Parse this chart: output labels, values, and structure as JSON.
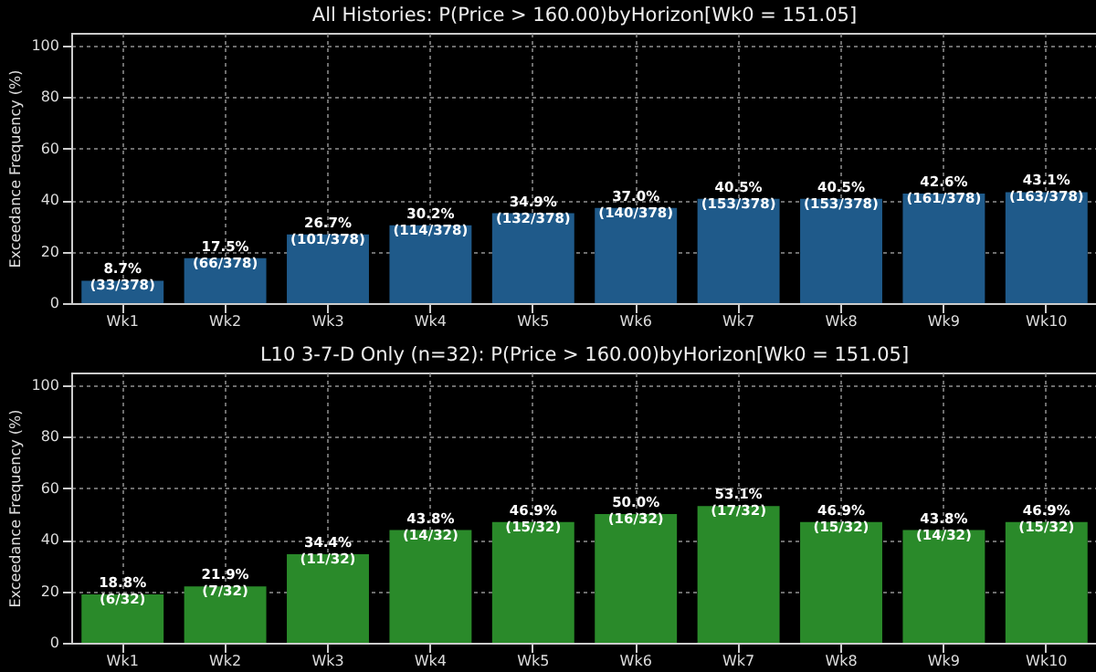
{
  "chart_data": [
    {
      "type": "bar",
      "title": "All Histories: P(Price > 160.00)byHorizon[Wk0 = 151.05]",
      "ylabel": "Exceedance Frequency (%)",
      "categories": [
        "Wk1",
        "Wk2",
        "Wk3",
        "Wk4",
        "Wk5",
        "Wk6",
        "Wk7",
        "Wk8",
        "Wk9",
        "Wk10"
      ],
      "values": [
        8.7,
        17.5,
        26.7,
        30.2,
        34.9,
        37.0,
        40.5,
        40.5,
        42.6,
        43.1
      ],
      "color": "#1f5a8a",
      "value_labels": [
        "8.7%\n(33/378)",
        "17.5%\n(66/378)",
        "26.7%\n(101/378)",
        "30.2%\n(114/378)",
        "34.9%\n(132/378)",
        "37.0%\n(140/378)",
        "40.5%\n(153/378)",
        "40.5%\n(153/378)",
        "42.6%\n(161/378)",
        "43.1%\n(163/378)"
      ],
      "ylim": [
        0,
        105
      ],
      "yticks": [
        0,
        20,
        40,
        60,
        80,
        100
      ],
      "grid": true
    },
    {
      "type": "bar",
      "title": "L10 3-7-D Only (n=32): P(Price > 160.00)byHorizon[Wk0 = 151.05]",
      "ylabel": "Exceedance Frequency (%)",
      "categories": [
        "Wk1",
        "Wk2",
        "Wk3",
        "Wk4",
        "Wk5",
        "Wk6",
        "Wk7",
        "Wk8",
        "Wk9",
        "Wk10"
      ],
      "values": [
        18.8,
        21.9,
        34.4,
        43.8,
        46.9,
        50.0,
        53.1,
        46.9,
        43.8,
        46.9
      ],
      "color": "#2a8a2a",
      "value_labels": [
        "18.8%\n(6/32)",
        "21.9%\n(7/32)",
        "34.4%\n(11/32)",
        "43.8%\n(14/32)",
        "46.9%\n(15/32)",
        "50.0%\n(16/32)",
        "53.1%\n(17/32)",
        "46.9%\n(15/32)",
        "43.8%\n(14/32)",
        "46.9%\n(15/32)"
      ],
      "ylim": [
        0,
        105
      ],
      "yticks": [
        0,
        20,
        40,
        60,
        80,
        100
      ],
      "grid": true
    }
  ]
}
